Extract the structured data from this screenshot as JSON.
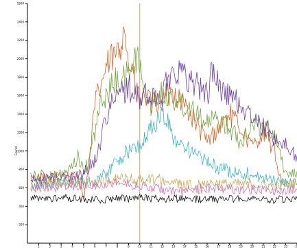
{
  "chart_data": {
    "type": "line",
    "title": "",
    "xlabel": "",
    "ylabel": "Counts",
    "xlim": [
      0,
      24
    ],
    "ylim": [
      0,
      2600
    ],
    "xticks": [
      "1",
      "2",
      "3",
      "4",
      "5",
      "6",
      "7",
      "8",
      "9",
      "10",
      "11",
      "12",
      "13",
      "14",
      "15",
      "16",
      "17",
      "18",
      "19",
      "20",
      "21",
      "22",
      "23",
      "24"
    ],
    "yticks": [
      "200",
      "400",
      "600",
      "800",
      "1000",
      "1200",
      "1400",
      "1600",
      "1800",
      "2000",
      "2200",
      "2400",
      "2600"
    ],
    "marker_x": 10.0,
    "series": [
      {
        "color": "#e06020",
        "x": [
          0.3,
          1,
          2,
          3,
          4,
          4.5,
          5,
          5.3,
          5.6,
          6,
          6.5,
          7,
          7.5,
          8,
          8.3,
          8.6,
          8.8,
          9,
          9.3,
          9.6,
          10,
          10.5,
          11,
          12,
          13,
          14,
          15,
          16,
          17,
          18,
          19,
          20,
          21,
          22,
          22.5,
          23
        ],
        "values": [
          720,
          700,
          690,
          760,
          710,
          740,
          500,
          700,
          1000,
          1500,
          1700,
          1900,
          2000,
          2050,
          2100,
          2500,
          2150,
          1900,
          1950,
          1700,
          1500,
          1600,
          1500,
          1550,
          1650,
          1500,
          1300,
          1100,
          1250,
          1400,
          1250,
          1050,
          1200,
          1000,
          700,
          620
        ]
      },
      {
        "color": "#6ea83c",
        "x": [
          0.3,
          1,
          2,
          3,
          4,
          4.5,
          5,
          5.5,
          6,
          6.5,
          7,
          7.5,
          8,
          8.5,
          9,
          9.5,
          10,
          10.5,
          11,
          12,
          13,
          14,
          15,
          16,
          17,
          18,
          19,
          20,
          21,
          22,
          23,
          24
        ],
        "values": [
          760,
          740,
          720,
          740,
          800,
          950,
          760,
          900,
          1200,
          1500,
          1600,
          1700,
          1800,
          1750,
          1850,
          2000,
          1950,
          1600,
          1500,
          1650,
          1550,
          1500,
          1450,
          1300,
          1350,
          1250,
          1100,
          1300,
          1250,
          1200,
          750,
          780
        ]
      },
      {
        "color": "#6a3ea8",
        "x": [
          0.3,
          2,
          4,
          5,
          6,
          6.5,
          7,
          7.5,
          8,
          8.5,
          9,
          9.5,
          10,
          10.5,
          11,
          12,
          12.5,
          13,
          13.5,
          14,
          15,
          16,
          16.5,
          17,
          18,
          19,
          20,
          21,
          22,
          23,
          24
        ],
        "values": [
          680,
          700,
          720,
          760,
          900,
          1100,
          1400,
          1500,
          1600,
          1650,
          1700,
          1600,
          1550,
          1650,
          1550,
          1600,
          1800,
          1850,
          1900,
          1800,
          1750,
          1600,
          1900,
          1700,
          1600,
          1500,
          1350,
          1250,
          1150,
          1050,
          950
        ]
      },
      {
        "color": "#3ab4c4",
        "x": [
          0.3,
          2,
          4,
          6,
          7,
          8,
          9,
          10,
          10.5,
          11,
          11.5,
          12,
          12.5,
          13,
          14,
          15,
          16,
          17,
          18,
          19,
          20,
          21,
          22,
          23,
          24
        ],
        "values": [
          620,
          640,
          660,
          680,
          750,
          900,
          1000,
          1050,
          1150,
          1250,
          1300,
          1400,
          1300,
          1150,
          1050,
          950,
          880,
          820,
          780,
          760,
          750,
          700,
          680,
          660,
          640
        ]
      },
      {
        "color": "#c8a850",
        "x": [
          0.3,
          2,
          4,
          6,
          8,
          10,
          12,
          14,
          16,
          18,
          20,
          22,
          24
        ],
        "values": [
          620,
          640,
          650,
          660,
          700,
          680,
          690,
          620,
          660,
          640,
          640,
          620,
          650
        ]
      },
      {
        "color": "#d870b0",
        "x": [
          0.3,
          2,
          4,
          6,
          8,
          10,
          12,
          14,
          16,
          18,
          20,
          22,
          24
        ],
        "values": [
          600,
          610,
          620,
          640,
          660,
          620,
          580,
          560,
          600,
          590,
          580,
          570,
          580
        ]
      },
      {
        "color": "#111111",
        "x": [
          0.3,
          2,
          4,
          6,
          8,
          10,
          12,
          14,
          16,
          18,
          20,
          22,
          24
        ],
        "values": [
          480,
          485,
          490,
          470,
          480,
          490,
          475,
          485,
          470,
          480,
          490,
          470,
          485
        ]
      }
    ]
  }
}
